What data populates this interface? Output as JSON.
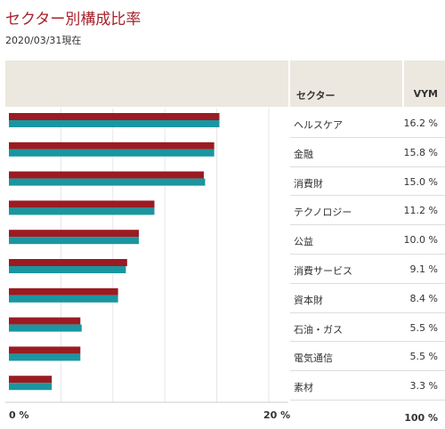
{
  "title": "セクター別構成比率",
  "date": "2020/03/31現在",
  "table": {
    "col_sector": "セクター",
    "col_fund": "VYM",
    "total": "100 %"
  },
  "colors": {
    "series1": "#9b1b22",
    "series2": "#1a96a0",
    "title": "#a8222c",
    "header_bg": "#ece8df"
  },
  "chart_data": {
    "type": "bar",
    "orientation": "horizontal",
    "categories": [
      "ヘルスケア",
      "金融",
      "消費財",
      "テクノロジー",
      "公益",
      "消費サービス",
      "資本財",
      "石油・ガス",
      "電気通信",
      "素材"
    ],
    "series": [
      {
        "values": [
          16.2,
          15.8,
          15.0,
          11.2,
          10.0,
          9.1,
          8.4,
          5.5,
          5.5,
          3.3
        ]
      },
      {
        "values": [
          16.2,
          15.8,
          15.1,
          11.2,
          10.0,
          9.0,
          8.4,
          5.6,
          5.5,
          3.3
        ]
      }
    ],
    "value_labels": [
      "16.2 %",
      "15.8 %",
      "15.0 %",
      "11.2 %",
      "10.0 %",
      "9.1 %",
      "8.4 %",
      "5.5 %",
      "5.5 %",
      "3.3 %"
    ],
    "xlim": [
      0,
      20
    ],
    "xtick_labels": [
      "0 %",
      "20 %"
    ],
    "grid": true
  }
}
